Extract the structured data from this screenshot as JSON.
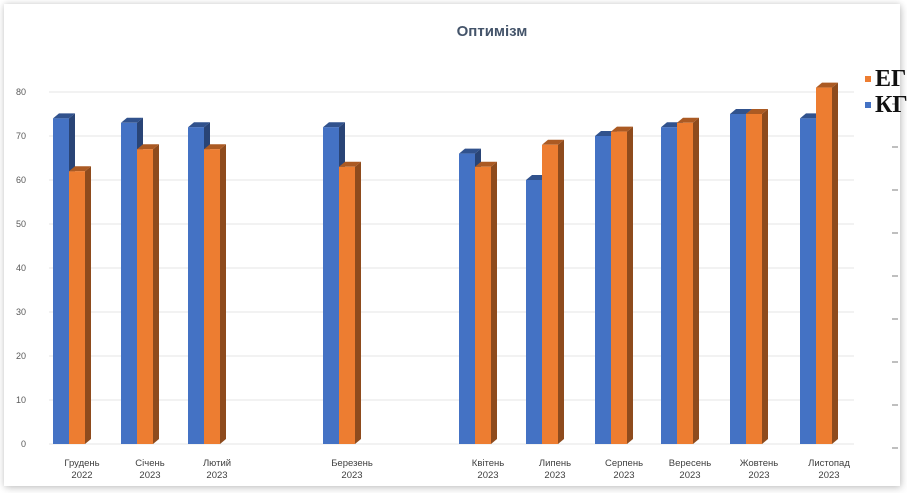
{
  "chart_data": {
    "type": "bar",
    "title": "Оптимізм",
    "categories": [
      [
        "Грудень",
        "2022"
      ],
      [
        "Січень",
        "2023"
      ],
      [
        "Лютий",
        "2023"
      ],
      [
        "Березень",
        "2023"
      ],
      [
        "Квітень",
        "2023"
      ],
      [
        "Липень",
        "2023"
      ],
      [
        "Серпень",
        "2023"
      ],
      [
        "Вересень",
        "2023"
      ],
      [
        "Жовтень",
        "2023"
      ],
      [
        "Листопад",
        "2023"
      ]
    ],
    "series": [
      {
        "name": "КГ",
        "color": "#4472C4",
        "values": [
          74,
          73,
          72,
          72,
          66,
          60,
          70,
          72,
          75,
          74
        ]
      },
      {
        "name": "ЕГ",
        "color": "#ED7D31",
        "values": [
          62,
          67,
          67,
          63,
          63,
          68,
          71,
          73,
          75,
          81
        ]
      }
    ],
    "ylim": [
      0,
      80
    ],
    "yticks": [
      "0",
      "10",
      "20",
      "30",
      "40",
      "50",
      "60",
      "70",
      "80"
    ],
    "legend": {
      "placement": "top-right",
      "order": [
        "ЕГ",
        "КГ"
      ]
    },
    "grid": true
  }
}
